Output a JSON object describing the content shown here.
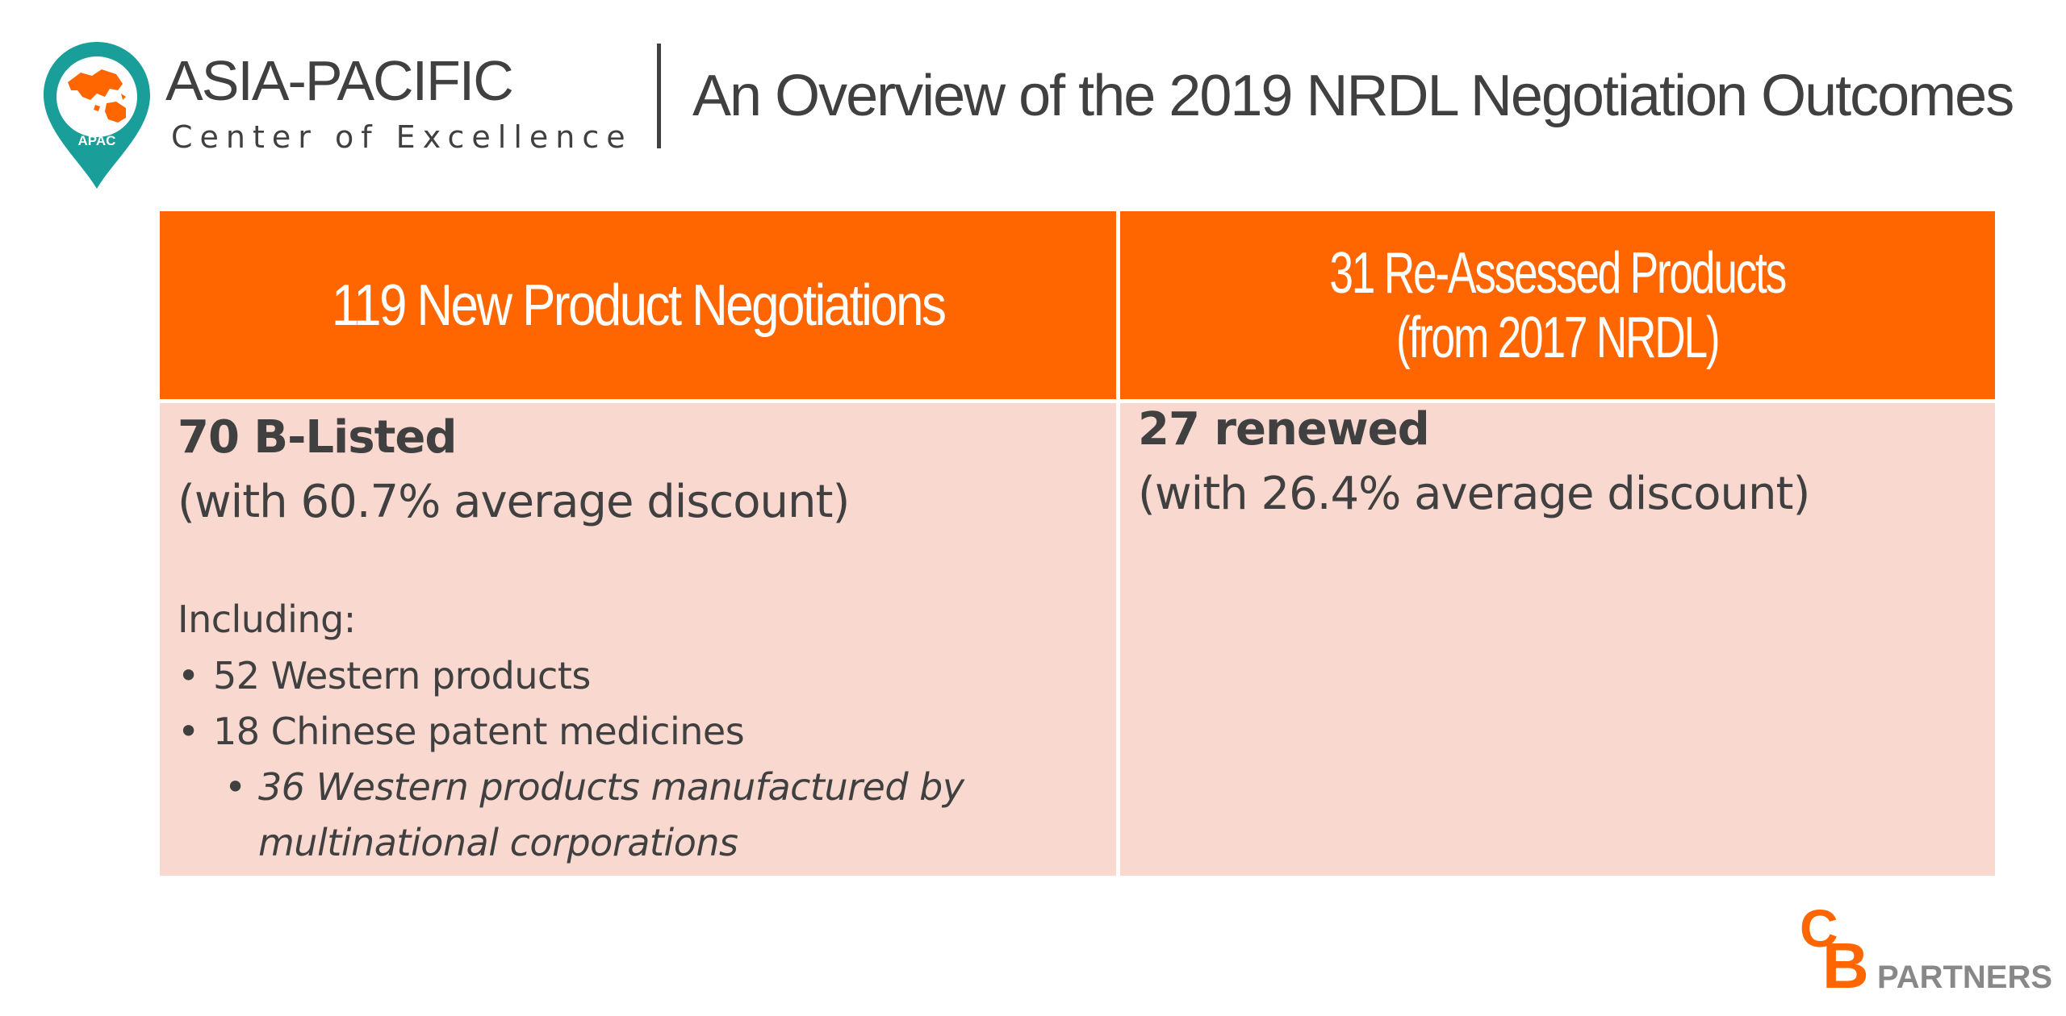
{
  "brand": {
    "title": "ASIA-PACIFIC",
    "subtitle": "Center of Excellence",
    "pin_label": "APAC"
  },
  "page": {
    "title": "An Overview of the 2019 NRDL Negotiation Outcomes"
  },
  "table": {
    "columns": [
      {
        "header_line1": "119 New Product Negotiations",
        "header_line2": ""
      },
      {
        "header_line1": "31 Re-Assessed Products",
        "header_line2": "(from 2017 NRDL)"
      }
    ],
    "left_cell": {
      "headline": "70 B-Listed",
      "detail": "(with 60.7% average discount)",
      "including_label": "Including:",
      "bullets": [
        "52 Western products",
        "18 Chinese patent medicines"
      ],
      "sub_bullet": "36 Western products manufactured by multinational corporations"
    },
    "right_cell": {
      "headline": "27 renewed",
      "detail": "(with 26.4% average discount)"
    }
  },
  "footer_logo": {
    "letter_c": "C",
    "letter_b": "B",
    "word": "PARTNERS"
  },
  "colors": {
    "accent": "#ff6600",
    "header_text": "#ffffff",
    "cell_background": "#f8d8cf",
    "body_text": "#404040",
    "pin_teal": "#1a9e9a",
    "logo_gray": "#888888"
  },
  "icons": {
    "pin": "map-pin-icon",
    "map": "asia-pacific-map-icon"
  }
}
